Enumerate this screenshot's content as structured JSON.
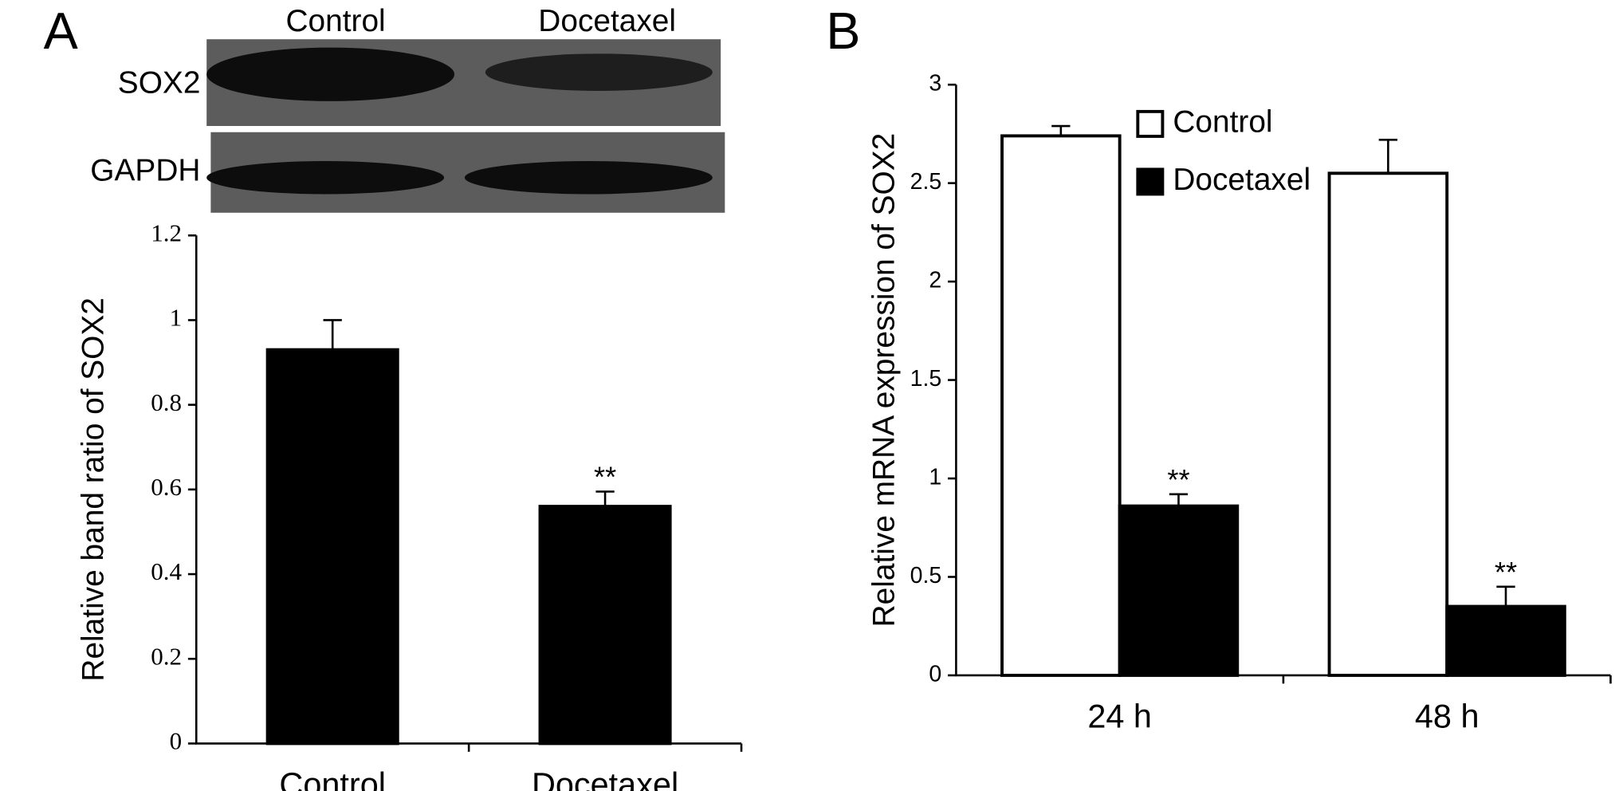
{
  "blot": {
    "columns": [
      "Control",
      "Docetaxel"
    ],
    "rows": [
      "SOX2",
      "GAPDH"
    ]
  },
  "chart_data": [
    {
      "type": "bar",
      "label": "A",
      "ylabel": "Relative band ratio of SOX2",
      "categories": [
        "Control",
        "Docetaxel"
      ],
      "values": [
        0.93,
        0.56
      ],
      "errors": [
        0.07,
        0.035
      ],
      "significance": [
        null,
        "**"
      ],
      "color": "#000000",
      "ylim": [
        0,
        1.2
      ],
      "yticks": [
        0,
        0.2,
        0.4,
        0.6,
        0.8,
        1,
        1.2
      ]
    },
    {
      "type": "bar",
      "label": "B",
      "ylabel": "Relative mRNA expression of SOX2",
      "categories": [
        "24 h",
        "48 h"
      ],
      "series": [
        {
          "name": "Control",
          "color": "#ffffff",
          "values": [
            2.74,
            2.55
          ],
          "errors": [
            0.05,
            0.17
          ],
          "significance": [
            null,
            null
          ]
        },
        {
          "name": "Docetaxel",
          "color": "#000000",
          "values": [
            0.86,
            0.35
          ],
          "errors": [
            0.06,
            0.1
          ],
          "significance": [
            "**",
            "**"
          ]
        }
      ],
      "ylim": [
        0,
        3
      ],
      "yticks": [
        0,
        0.5,
        1,
        1.5,
        2,
        2.5,
        3
      ]
    }
  ]
}
